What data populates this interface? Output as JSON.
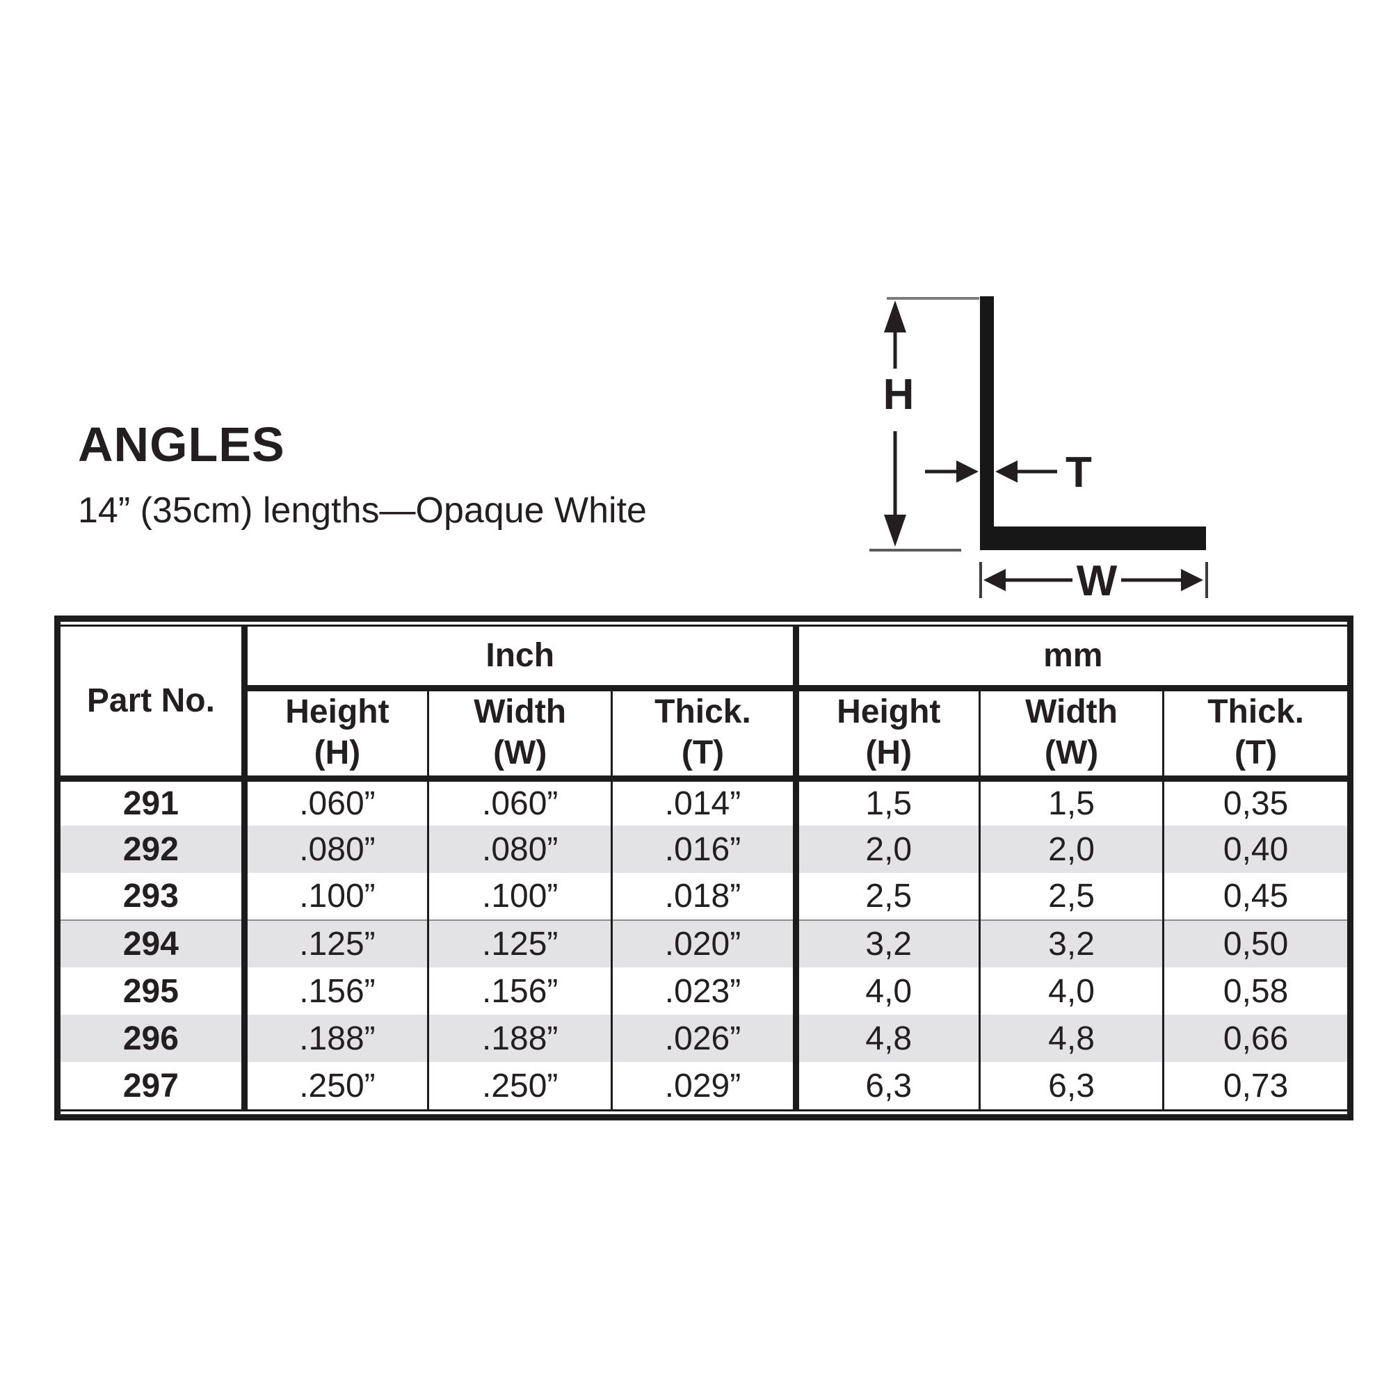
{
  "header": {
    "title": "ANGLES",
    "subtitle": "14” (35cm) lengths—Opaque White"
  },
  "diagram": {
    "labels": {
      "height": "H",
      "thickness": "T",
      "width": "W"
    }
  },
  "table": {
    "part_col_label": "Part No.",
    "unit_groups": [
      {
        "label": "Inch"
      },
      {
        "label": "mm"
      }
    ],
    "sub_columns": [
      {
        "line1": "Height",
        "line2": "(H)"
      },
      {
        "line1": "Width",
        "line2": "(W)"
      },
      {
        "line1": "Thick.",
        "line2": "(T)"
      }
    ],
    "rows": [
      {
        "part": "291",
        "inch": [
          ".060”",
          ".060”",
          ".014”"
        ],
        "mm": [
          "1,5",
          "1,5",
          "0,35"
        ]
      },
      {
        "part": "292",
        "inch": [
          ".080”",
          ".080”",
          ".016”"
        ],
        "mm": [
          "2,0",
          "2,0",
          "0,40"
        ]
      },
      {
        "part": "293",
        "inch": [
          ".100”",
          ".100”",
          ".018”"
        ],
        "mm": [
          "2,5",
          "2,5",
          "0,45"
        ]
      },
      {
        "part": "294",
        "inch": [
          ".125”",
          ".125”",
          ".020”"
        ],
        "mm": [
          "3,2",
          "3,2",
          "0,50"
        ]
      },
      {
        "part": "295",
        "inch": [
          ".156”",
          ".156”",
          ".023”"
        ],
        "mm": [
          "4,0",
          "4,0",
          "0,58"
        ]
      },
      {
        "part": "296",
        "inch": [
          ".188”",
          ".188”",
          ".026”"
        ],
        "mm": [
          "4,8",
          "4,8",
          "0,66"
        ]
      },
      {
        "part": "297",
        "inch": [
          ".250”",
          ".250”",
          ".029”"
        ],
        "mm": [
          "6,3",
          "6,3",
          "0,73"
        ]
      }
    ]
  },
  "colors": {
    "ink": "#231f20",
    "table_border": "#1c1c1c",
    "row_shade": "#e3e3e5"
  }
}
